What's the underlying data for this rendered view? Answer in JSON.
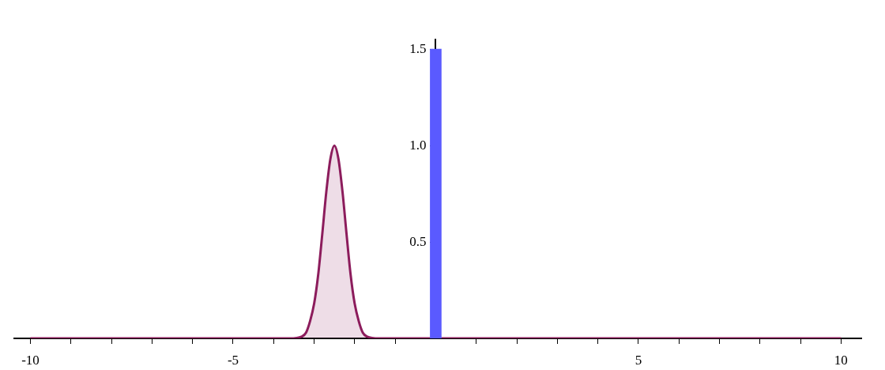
{
  "chart_data": {
    "type": "area",
    "series": [
      {
        "color": "#8c1c5c",
        "x": [
          -10,
          -3.6,
          -3.3,
          -3.2,
          -3.1,
          -3.0,
          -2.9,
          -2.8,
          -2.7,
          -2.6,
          -2.5,
          -2.4,
          -2.3,
          -2.2,
          -2.1,
          -2.0,
          -1.9,
          -1.8,
          -1.7,
          -1.4,
          10
        ],
        "values": [
          0,
          0,
          0.01,
          0.03,
          0.09,
          0.18,
          0.33,
          0.54,
          0.76,
          0.93,
          1.0,
          0.93,
          0.76,
          0.54,
          0.33,
          0.18,
          0.09,
          0.03,
          0.01,
          0,
          0
        ]
      },
      {
        "type": "bar",
        "color": "#5a5aff",
        "x": [
          0
        ],
        "values": [
          1.5
        ]
      }
    ],
    "xlim": [
      -10.4,
      10.5
    ],
    "xticks": [
      -10,
      {
        "value": -9,
        "label": null
      },
      {
        "value": -8,
        "label": null
      },
      {
        "value": -7,
        "label": null
      },
      {
        "value": -6,
        "label": null
      },
      -5,
      {
        "value": -4,
        "label": null
      },
      {
        "value": -3,
        "label": null
      },
      {
        "value": -2,
        "label": null
      },
      {
        "value": -1,
        "label": null
      },
      {
        "value": 1,
        "label": null
      },
      {
        "value": 2,
        "label": null
      },
      {
        "value": 3,
        "label": null
      },
      {
        "value": 4,
        "label": null
      },
      5,
      {
        "value": 6,
        "label": null
      },
      {
        "value": 7,
        "label": null
      },
      {
        "value": 8,
        "label": null
      },
      {
        "value": 9,
        "label": null
      },
      10
    ],
    "ylim": [
      0,
      1.55
    ],
    "yticks": [
      {
        "value": 0.5,
        "label": "0.5"
      },
      {
        "value": 1.0,
        "label": "1.0"
      },
      {
        "value": 1.5,
        "label": "1.5"
      }
    ],
    "grid": false
  }
}
